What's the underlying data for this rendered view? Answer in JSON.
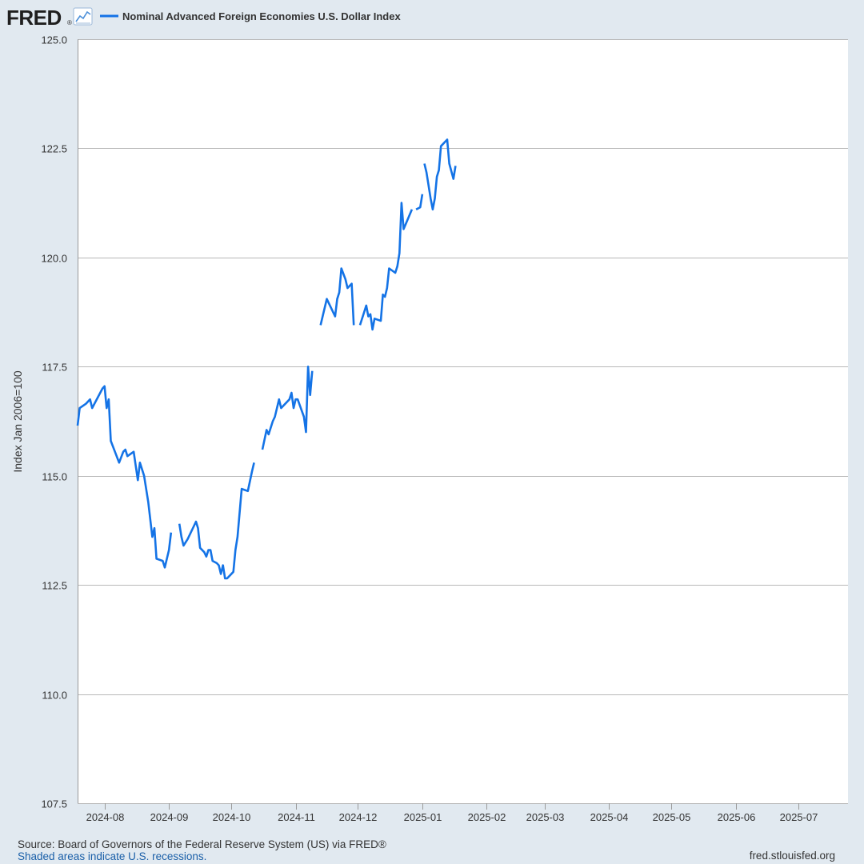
{
  "header": {
    "logo_text": "FRED",
    "logo_registered": "®",
    "legend_label": "Nominal Advanced Foreign Economies U.S. Dollar Index"
  },
  "footer": {
    "source": "Source: Board of Governors of the Federal Reserve System (US) via FRED®",
    "note": "Shaded areas indicate U.S. recessions.",
    "site": "fred.stlouisfed.org"
  },
  "colors": {
    "series": "#1473e6",
    "background": "#e1e9f0",
    "plot": "#ffffff",
    "grid": "#b8b8b8"
  },
  "icons": [
    "fred-logo-chart-icon"
  ],
  "chart_data": {
    "type": "line",
    "title": "",
    "xlabel": "",
    "ylabel": "Index Jan 2006=100",
    "ylim": [
      107.5,
      125.0
    ],
    "yticks": [
      "107.5",
      "110.0",
      "112.5",
      "115.0",
      "117.5",
      "120.0",
      "122.5",
      "125.0"
    ],
    "xlim": [
      "2024-07-19",
      "2025-07-25"
    ],
    "xticks": [
      {
        "date": "2024-08-01",
        "label": "2024-08"
      },
      {
        "date": "2024-09-01",
        "label": "2024-09"
      },
      {
        "date": "2024-10-01",
        "label": "2024-10"
      },
      {
        "date": "2024-11-01",
        "label": "2024-11"
      },
      {
        "date": "2024-12-01",
        "label": "2024-12"
      },
      {
        "date": "2025-01-01",
        "label": "2025-01"
      },
      {
        "date": "2025-02-01",
        "label": "2025-02"
      },
      {
        "date": "2025-03-01",
        "label": "2025-03"
      },
      {
        "date": "2025-04-01",
        "label": "2025-04"
      },
      {
        "date": "2025-05-01",
        "label": "2025-05"
      },
      {
        "date": "2025-06-01",
        "label": "2025-06"
      },
      {
        "date": "2025-07-01",
        "label": "2025-07"
      }
    ],
    "grid": "horizontal",
    "legend": "top-left",
    "series": [
      {
        "name": "Nominal Advanced Foreign Economies U.S. Dollar Index",
        "segments": [
          [
            [
              "2024-07-19",
              116.15
            ],
            [
              "2024-07-20",
              116.55
            ],
            [
              "2024-07-23",
              116.65
            ],
            [
              "2024-07-25",
              116.75
            ],
            [
              "2024-07-26",
              116.55
            ],
            [
              "2024-07-31",
              117.0
            ],
            [
              "2024-08-01",
              117.05
            ],
            [
              "2024-08-02",
              116.55
            ],
            [
              "2024-08-03",
              116.75
            ],
            [
              "2024-08-04",
              115.8
            ],
            [
              "2024-08-06",
              115.55
            ],
            [
              "2024-08-08",
              115.3
            ],
            [
              "2024-08-10",
              115.55
            ],
            [
              "2024-08-11",
              115.6
            ],
            [
              "2024-08-12",
              115.45
            ],
            [
              "2024-08-15",
              115.55
            ],
            [
              "2024-08-17",
              114.9
            ],
            [
              "2024-08-18",
              115.3
            ],
            [
              "2024-08-20",
              115.0
            ],
            [
              "2024-08-22",
              114.4
            ],
            [
              "2024-08-24",
              113.6
            ],
            [
              "2024-08-25",
              113.8
            ],
            [
              "2024-08-26",
              113.1
            ],
            [
              "2024-08-29",
              113.05
            ],
            [
              "2024-08-30",
              112.9
            ],
            [
              "2024-09-01",
              113.3
            ],
            [
              "2024-09-02",
              113.7
            ]
          ],
          [
            [
              "2024-09-06",
              113.9
            ],
            [
              "2024-09-07",
              113.6
            ],
            [
              "2024-09-08",
              113.4
            ],
            [
              "2024-09-10",
              113.55
            ],
            [
              "2024-09-13",
              113.85
            ],
            [
              "2024-09-14",
              113.95
            ],
            [
              "2024-09-15",
              113.8
            ],
            [
              "2024-09-16",
              113.35
            ],
            [
              "2024-09-18",
              113.25
            ],
            [
              "2024-09-19",
              113.15
            ],
            [
              "2024-09-20",
              113.3
            ],
            [
              "2024-09-21",
              113.3
            ],
            [
              "2024-09-22",
              113.05
            ],
            [
              "2024-09-24",
              113.0
            ],
            [
              "2024-09-25",
              112.95
            ],
            [
              "2024-09-26",
              112.75
            ],
            [
              "2024-09-27",
              112.95
            ],
            [
              "2024-09-28",
              112.65
            ],
            [
              "2024-09-29",
              112.65
            ],
            [
              "2024-10-02",
              112.8
            ],
            [
              "2024-10-03",
              113.3
            ],
            [
              "2024-10-04",
              113.6
            ],
            [
              "2024-10-06",
              114.7
            ],
            [
              "2024-10-09",
              114.65
            ],
            [
              "2024-10-11",
              115.1
            ],
            [
              "2024-10-12",
              115.3
            ]
          ],
          [
            [
              "2024-10-16",
              115.6
            ],
            [
              "2024-10-18",
              116.05
            ],
            [
              "2024-10-19",
              115.95
            ],
            [
              "2024-10-21",
              116.25
            ],
            [
              "2024-10-22",
              116.35
            ],
            [
              "2024-10-24",
              116.75
            ],
            [
              "2024-10-25",
              116.55
            ],
            [
              "2024-10-29",
              116.75
            ],
            [
              "2024-10-30",
              116.9
            ],
            [
              "2024-10-31",
              116.55
            ],
            [
              "2024-11-01",
              116.75
            ],
            [
              "2024-11-02",
              116.75
            ],
            [
              "2024-11-05",
              116.35
            ],
            [
              "2024-11-06",
              116.0
            ],
            [
              "2024-11-07",
              117.5
            ],
            [
              "2024-11-08",
              116.85
            ],
            [
              "2024-11-09",
              117.4
            ]
          ],
          [
            [
              "2024-11-13",
              118.45
            ],
            [
              "2024-11-15",
              118.85
            ],
            [
              "2024-11-16",
              119.05
            ],
            [
              "2024-11-18",
              118.85
            ],
            [
              "2024-11-20",
              118.65
            ],
            [
              "2024-11-21",
              119.05
            ],
            [
              "2024-11-22",
              119.2
            ],
            [
              "2024-11-23",
              119.75
            ],
            [
              "2024-11-25",
              119.5
            ],
            [
              "2024-11-26",
              119.3
            ],
            [
              "2024-11-28",
              119.4
            ],
            [
              "2024-11-29",
              118.45
            ]
          ],
          [
            [
              "2024-12-02",
              118.45
            ],
            [
              "2024-12-04",
              118.75
            ],
            [
              "2024-12-05",
              118.9
            ],
            [
              "2024-12-06",
              118.65
            ],
            [
              "2024-12-07",
              118.7
            ],
            [
              "2024-12-08",
              118.35
            ],
            [
              "2024-12-09",
              118.6
            ],
            [
              "2024-12-12",
              118.55
            ],
            [
              "2024-12-13",
              119.15
            ],
            [
              "2024-12-14",
              119.1
            ],
            [
              "2024-12-15",
              119.3
            ],
            [
              "2024-12-16",
              119.75
            ],
            [
              "2024-12-19",
              119.65
            ],
            [
              "2024-12-20",
              119.8
            ],
            [
              "2024-12-21",
              120.1
            ],
            [
              "2024-12-22",
              121.25
            ],
            [
              "2024-12-23",
              120.65
            ],
            [
              "2024-12-27",
              121.1
            ]
          ],
          [
            [
              "2024-12-29",
              121.1
            ],
            [
              "2024-12-31",
              121.15
            ],
            [
              "2025-01-01",
              121.45
            ]
          ],
          [
            [
              "2025-01-02",
              122.15
            ],
            [
              "2025-01-03",
              121.95
            ],
            [
              "2025-01-05",
              121.35
            ],
            [
              "2025-01-06",
              121.1
            ],
            [
              "2025-01-07",
              121.35
            ],
            [
              "2025-01-08",
              121.85
            ],
            [
              "2025-01-09",
              122.0
            ],
            [
              "2025-01-10",
              122.55
            ],
            [
              "2025-01-13",
              122.7
            ],
            [
              "2025-01-14",
              122.15
            ],
            [
              "2025-01-16",
              121.8
            ],
            [
              "2025-01-17",
              122.1
            ]
          ]
        ]
      }
    ]
  }
}
